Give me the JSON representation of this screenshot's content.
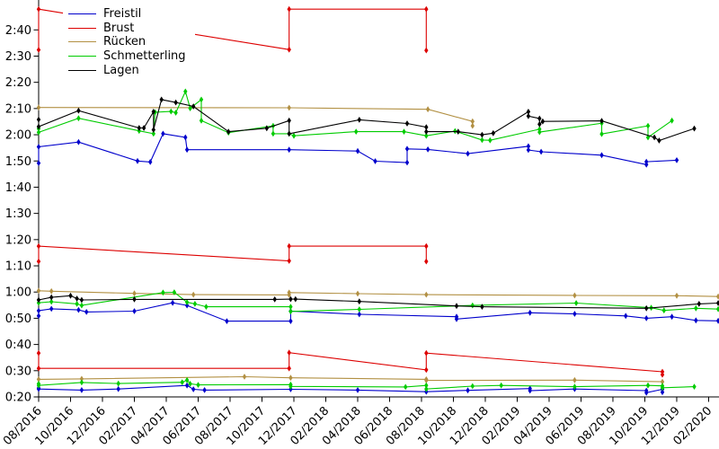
{
  "chart_data": {
    "type": "line",
    "title": "",
    "xlabel": "",
    "ylabel": "",
    "grid": false,
    "legend_position": "upper-left",
    "x_axis": {
      "unit": "month/year",
      "tick_labels": [
        "08/2016",
        "10/2016",
        "12/2016",
        "02/2017",
        "04/2017",
        "06/2017",
        "08/2017",
        "10/2017",
        "12/2017",
        "02/2018",
        "04/2018",
        "06/2018",
        "08/2018",
        "10/2018",
        "12/2018",
        "02/2019",
        "04/2019",
        "06/2019",
        "08/2019",
        "10/2019",
        "12/2019",
        "02/2020"
      ],
      "tick_months": [
        0,
        2,
        4,
        6,
        8,
        10,
        12,
        14,
        16,
        18,
        20,
        22,
        24,
        26,
        28,
        30,
        32,
        34,
        36,
        38,
        40,
        42
      ]
    },
    "y_axis": {
      "unit": "min:sec",
      "tick_labels": [
        "0:20",
        "0:30",
        "0:40",
        "0:50",
        "1:00",
        "1:10",
        "1:20",
        "1:30",
        "1:40",
        "1:50",
        "2:00",
        "2:10",
        "2:20",
        "2:30",
        "2:40"
      ],
      "tick_seconds": [
        20,
        30,
        40,
        50,
        60,
        70,
        80,
        90,
        100,
        110,
        120,
        130,
        140,
        150,
        160
      ]
    },
    "xlim_months": [
      0,
      42.65
    ],
    "ylim_seconds": [
      20,
      171.4
    ],
    "legend": [
      {
        "label": "Freistil",
        "color": "#0000cc"
      },
      {
        "label": "Brust",
        "color": "#dd0000"
      },
      {
        "label": "Rücken",
        "color": "#b29043"
      },
      {
        "label": "Schmetterling",
        "color": "#00cc00"
      },
      {
        "label": "Lagen",
        "color": "#000000"
      }
    ],
    "x_origin_note": "months are counted from 08/2016; values are times in seconds",
    "series": [
      {
        "name": "freistil-line-1",
        "legend_label": "Freistil",
        "color": "#0000cc",
        "points": [
          [
            0,
            109.2
          ],
          [
            0,
            115.4
          ],
          [
            2.5,
            117.2
          ],
          [
            6.2,
            110.0
          ],
          [
            7.0,
            109.6
          ],
          [
            7.8,
            120.4
          ],
          [
            9.2,
            119.0
          ],
          [
            9.3,
            114.3
          ],
          [
            15.7,
            114.3
          ],
          [
            20.0,
            113.8
          ],
          [
            21.1,
            109.9
          ],
          [
            23.1,
            109.4
          ],
          [
            23.1,
            114.6
          ],
          [
            24.4,
            114.4
          ],
          [
            26.9,
            112.8
          ],
          [
            30.7,
            115.6
          ],
          [
            30.7,
            114.2
          ],
          [
            31.5,
            113.5
          ],
          [
            35.3,
            112.2
          ],
          [
            38.1,
            108.6
          ],
          [
            38.1,
            109.7
          ],
          [
            40.0,
            110.3
          ]
        ]
      },
      {
        "name": "brust-line-1",
        "legend_label": "Brust",
        "color": "#dd0000",
        "points": [
          [
            0,
            152.4
          ],
          [
            0,
            167.9
          ],
          [
            15.7,
            152.5
          ],
          [
            15.7,
            167.9
          ],
          [
            24.3,
            167.9
          ],
          [
            24.3,
            152.2
          ]
        ]
      },
      {
        "name": "ruecken-line-1",
        "legend_label": "Rücken",
        "color": "#b29043",
        "points": [
          [
            0,
            130.4
          ],
          [
            15.7,
            130.3
          ],
          [
            24.4,
            129.7
          ],
          [
            27.2,
            125.1
          ],
          [
            27.2,
            123.4
          ]
        ]
      },
      {
        "name": "schmetterling-line-1",
        "legend_label": "Schmetterling",
        "color": "#00cc00",
        "points": [
          [
            0,
            122.3
          ],
          [
            0,
            120.9
          ],
          [
            2.5,
            126.3
          ],
          [
            6.3,
            121.5
          ],
          [
            7.2,
            120.4
          ],
          [
            7.3,
            128.6
          ],
          [
            8.3,
            128.9
          ],
          [
            8.6,
            128.4
          ],
          [
            9.2,
            136.5
          ],
          [
            9.5,
            130.1
          ],
          [
            10.2,
            133.4
          ],
          [
            10.2,
            125.4
          ],
          [
            11.9,
            120.8
          ],
          [
            14.7,
            123.4
          ],
          [
            14.7,
            120.4
          ],
          [
            15.7,
            120.4
          ],
          [
            16.0,
            119.6
          ],
          [
            19.9,
            121.2
          ],
          [
            22.9,
            121.2
          ],
          [
            24.3,
            119.6
          ],
          [
            26.1,
            121.4
          ],
          [
            27.8,
            118.0
          ],
          [
            28.3,
            117.9
          ],
          [
            31.4,
            122.1
          ],
          [
            31.4,
            121.0
          ],
          [
            35.3,
            124.4
          ],
          [
            35.3,
            120.3
          ],
          [
            38.2,
            123.4
          ],
          [
            38.2,
            119.0
          ],
          [
            39.7,
            125.4
          ]
        ]
      },
      {
        "name": "lagen-line-1",
        "legend_label": "Lagen",
        "color": "#000000",
        "points": [
          [
            0,
            125.8
          ],
          [
            0,
            123.1
          ],
          [
            2.5,
            129.2
          ],
          [
            6.3,
            122.6
          ],
          [
            6.6,
            122.6
          ],
          [
            7.2,
            128.8
          ],
          [
            7.2,
            121.9
          ],
          [
            7.7,
            133.4
          ],
          [
            8.6,
            132.3
          ],
          [
            9.7,
            130.8
          ],
          [
            11.9,
            121.2
          ],
          [
            14.3,
            122.5
          ],
          [
            15.7,
            125.4
          ],
          [
            15.7,
            120.4
          ],
          [
            20.1,
            125.7
          ],
          [
            23.1,
            124.3
          ],
          [
            24.3,
            122.9
          ],
          [
            24.3,
            121.2
          ],
          [
            26.3,
            121.2
          ],
          [
            27.8,
            120.0
          ],
          [
            28.5,
            120.6
          ],
          [
            30.7,
            128.8
          ],
          [
            30.7,
            127.1
          ],
          [
            31.4,
            126.2
          ],
          [
            31.4,
            124.0
          ],
          [
            31.6,
            125.1
          ],
          [
            35.3,
            125.3
          ],
          [
            38.6,
            119.0
          ],
          [
            38.9,
            117.8
          ],
          [
            41.1,
            122.4
          ]
        ]
      },
      {
        "name": "freistil-line-2",
        "legend_label": "Freistil",
        "color": "#0000cc",
        "points": [
          [
            0,
            50.9
          ],
          [
            0,
            52.9
          ],
          [
            0.8,
            53.6
          ],
          [
            2.5,
            53.2
          ],
          [
            3.0,
            52.4
          ],
          [
            6.0,
            52.7
          ],
          [
            8.4,
            55.9
          ],
          [
            9.3,
            54.9
          ],
          [
            11.8,
            48.9
          ],
          [
            15.8,
            48.9
          ],
          [
            15.8,
            52.7
          ],
          [
            20.1,
            51.5
          ],
          [
            26.2,
            50.6
          ],
          [
            26.2,
            49.7
          ],
          [
            30.8,
            52.1
          ],
          [
            33.6,
            51.7
          ],
          [
            36.8,
            50.9
          ],
          [
            38.1,
            50.0
          ],
          [
            39.7,
            50.6
          ],
          [
            41.2,
            49.2
          ],
          [
            42.6,
            49.0
          ]
        ]
      },
      {
        "name": "brust-line-2",
        "legend_label": "Brust",
        "color": "#dd0000",
        "points": [
          [
            0,
            71.7
          ],
          [
            0,
            77.5
          ],
          [
            15.7,
            71.9
          ],
          [
            15.7,
            77.5
          ],
          [
            24.3,
            77.5
          ],
          [
            24.3,
            71.7
          ]
        ]
      },
      {
        "name": "ruecken-line-2",
        "legend_label": "Rücken",
        "color": "#b29043",
        "points": [
          [
            0,
            60.5
          ],
          [
            0.8,
            60.3
          ],
          [
            6.0,
            59.5
          ],
          [
            9.7,
            59.0
          ],
          [
            15.7,
            58.9
          ],
          [
            15.7,
            59.8
          ],
          [
            20.0,
            59.4
          ],
          [
            24.3,
            59.0
          ],
          [
            33.6,
            58.7
          ],
          [
            40.0,
            58.6
          ],
          [
            42.6,
            58.3
          ]
        ]
      },
      {
        "name": "schmetterling-line-2",
        "legend_label": "Schmetterling",
        "color": "#00cc00",
        "points": [
          [
            0,
            55.9
          ],
          [
            0.8,
            56.3
          ],
          [
            2.4,
            55.5
          ],
          [
            2.7,
            54.9
          ],
          [
            7.8,
            59.8
          ],
          [
            8.5,
            59.9
          ],
          [
            9.3,
            56.1
          ],
          [
            9.8,
            55.5
          ],
          [
            10.5,
            54.4
          ],
          [
            15.8,
            54.4
          ],
          [
            15.8,
            52.6
          ],
          [
            20.1,
            53.4
          ],
          [
            27.2,
            54.9
          ],
          [
            33.7,
            55.8
          ],
          [
            38.4,
            54.0
          ],
          [
            39.2,
            53.0
          ],
          [
            41.2,
            53.8
          ],
          [
            42.6,
            53.5
          ]
        ]
      },
      {
        "name": "lagen-line-2",
        "legend_label": "Lagen",
        "color": "#000000",
        "points": [
          [
            0,
            57.0
          ],
          [
            0.8,
            58.0
          ],
          [
            2.0,
            58.6
          ],
          [
            2.4,
            57.5
          ],
          [
            2.7,
            57.0
          ],
          [
            6.0,
            57.2
          ],
          [
            14.8,
            57.2
          ],
          [
            15.8,
            57.3
          ],
          [
            16.1,
            57.3
          ],
          [
            20.1,
            56.4
          ],
          [
            26.2,
            54.7
          ],
          [
            27.8,
            54.4
          ],
          [
            38.1,
            53.8
          ],
          [
            41.4,
            55.5
          ],
          [
            42.6,
            55.8
          ]
        ]
      },
      {
        "name": "freistil-line-3",
        "legend_label": "Freistil",
        "color": "#0000cc",
        "points": [
          [
            0,
            23.4
          ],
          [
            0,
            23.0
          ],
          [
            2.7,
            22.6
          ],
          [
            5.0,
            23.0
          ],
          [
            9.3,
            24.4
          ],
          [
            9.7,
            22.9
          ],
          [
            10.4,
            22.6
          ],
          [
            15.8,
            22.9
          ],
          [
            20.0,
            22.6
          ],
          [
            24.3,
            22.0
          ],
          [
            26.9,
            22.5
          ],
          [
            30.8,
            23.2
          ],
          [
            30.8,
            22.4
          ],
          [
            33.6,
            23.0
          ],
          [
            38.1,
            22.4
          ],
          [
            38.1,
            21.6
          ],
          [
            39.1,
            22.9
          ],
          [
            39.1,
            21.8
          ]
        ]
      },
      {
        "name": "brust-line-3",
        "legend_label": "Brust",
        "color": "#dd0000",
        "points": [
          [
            0,
            36.7
          ],
          [
            0,
            30.9
          ],
          [
            15.7,
            30.9
          ],
          [
            15.7,
            36.9
          ],
          [
            24.3,
            30.3
          ],
          [
            24.3,
            36.7
          ],
          [
            39.1,
            29.6
          ],
          [
            39.1,
            28.5
          ]
        ]
      },
      {
        "name": "ruecken-line-3",
        "legend_label": "Rücken",
        "color": "#b29043",
        "points": [
          [
            0,
            26.7
          ],
          [
            2.7,
            26.9
          ],
          [
            12.9,
            27.7
          ],
          [
            15.8,
            27.3
          ],
          [
            24.3,
            26.7
          ],
          [
            24.3,
            26.3
          ],
          [
            33.6,
            26.4
          ],
          [
            39.1,
            25.8
          ]
        ]
      },
      {
        "name": "schmetterling-line-3",
        "legend_label": "Schmetterling",
        "color": "#00cc00",
        "points": [
          [
            0,
            25.0
          ],
          [
            0,
            24.4
          ],
          [
            2.7,
            25.5
          ],
          [
            5.0,
            25.1
          ],
          [
            9.0,
            25.6
          ],
          [
            9.3,
            26.4
          ],
          [
            9.5,
            25.0
          ],
          [
            10.0,
            24.6
          ],
          [
            15.8,
            24.7
          ],
          [
            15.8,
            24.0
          ],
          [
            23.0,
            23.8
          ],
          [
            24.3,
            24.4
          ],
          [
            24.3,
            23.0
          ],
          [
            27.2,
            24.1
          ],
          [
            29.0,
            24.4
          ],
          [
            33.6,
            23.9
          ],
          [
            38.2,
            24.4
          ],
          [
            39.1,
            24.2
          ],
          [
            39.1,
            23.5
          ],
          [
            41.1,
            23.9
          ]
        ]
      }
    ]
  }
}
